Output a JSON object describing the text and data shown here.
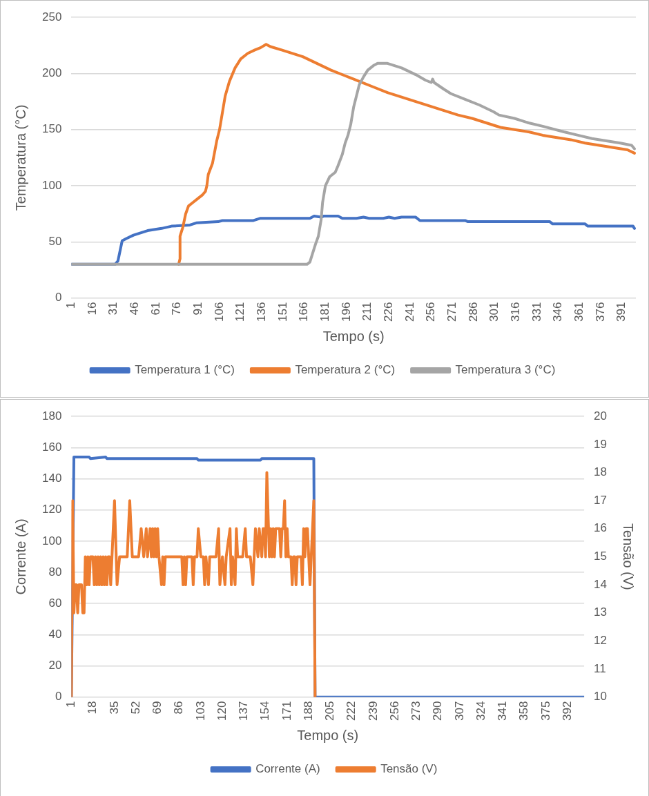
{
  "chart_data": [
    {
      "type": "line",
      "xlabel": "Tempo (s)",
      "ylabel": "Temperatura (°C)",
      "xlim": [
        1,
        401
      ],
      "xticks": [
        1,
        16,
        31,
        46,
        61,
        76,
        91,
        106,
        121,
        136,
        151,
        166,
        181,
        196,
        211,
        226,
        241,
        256,
        271,
        286,
        301,
        316,
        331,
        346,
        361,
        376,
        391
      ],
      "ylim": [
        0,
        250
      ],
      "yticks": [
        0,
        50,
        100,
        150,
        200,
        250
      ],
      "grid": "y",
      "legend": "bottom",
      "marker": "none",
      "series": [
        {
          "name": "Temperatura 1 (°C)",
          "color": "#4472c4",
          "x": [
            1,
            32,
            34,
            37,
            40,
            45,
            50,
            55,
            65,
            72,
            85,
            90,
            105,
            108,
            130,
            135,
            170,
            173,
            178,
            180,
            190,
            193,
            203,
            208,
            212,
            222,
            226,
            230,
            235,
            245,
            248,
            280,
            282,
            340,
            342,
            365,
            367,
            399,
            400
          ],
          "values": [
            30,
            30,
            33,
            51,
            53,
            56,
            58,
            60,
            62,
            64,
            65,
            67,
            68,
            69,
            69,
            71,
            71,
            73,
            72,
            73,
            73,
            71,
            71,
            72,
            71,
            71,
            72,
            71,
            72,
            72,
            69,
            69,
            68,
            68,
            66,
            66,
            64,
            64,
            62
          ]
        },
        {
          "name": "Temperatura 2 (°C)",
          "color": "#ed7d31",
          "x": [
            77,
            78,
            78,
            80,
            82,
            84,
            87,
            90,
            94,
            96,
            97,
            98,
            101,
            104,
            106,
            108,
            110,
            113,
            117,
            121,
            126,
            131,
            135,
            139,
            142,
            150,
            155,
            165,
            175,
            185,
            195,
            205,
            215,
            225,
            235,
            245,
            255,
            265,
            275,
            285,
            295,
            305,
            315,
            325,
            335,
            345,
            355,
            365,
            375,
            385,
            395,
            400
          ],
          "values": [
            30,
            35,
            55,
            63,
            75,
            82,
            85,
            88,
            92,
            95,
            100,
            110,
            120,
            140,
            150,
            165,
            180,
            193,
            205,
            213,
            218,
            221,
            223,
            226,
            224,
            221,
            219,
            215,
            209,
            203,
            198,
            193,
            188,
            183,
            179,
            175,
            171,
            167,
            163,
            160,
            156,
            152,
            150,
            148,
            145,
            143,
            141,
            138,
            136,
            134,
            132,
            129
          ]
        },
        {
          "name": "Temperatura 3 (°C)",
          "color": "#a5a5a5",
          "x": [
            1,
            168,
            170,
            172,
            174,
            176,
            178,
            179,
            181,
            184,
            188,
            190,
            193,
            195,
            197,
            199,
            201,
            203,
            205,
            208,
            211,
            215,
            218,
            225,
            235,
            245,
            252,
            256,
            257,
            258,
            265,
            270,
            280,
            290,
            300,
            304,
            315,
            325,
            335,
            350,
            360,
            370,
            380,
            390,
            398,
            400
          ],
          "values": [
            30,
            30,
            32,
            40,
            48,
            55,
            70,
            85,
            100,
            108,
            112,
            118,
            128,
            138,
            145,
            155,
            170,
            180,
            190,
            197,
            203,
            207,
            209,
            209,
            205,
            199,
            194,
            192,
            195,
            192,
            186,
            182,
            177,
            172,
            166,
            163,
            160,
            156,
            153,
            148,
            145,
            142,
            140,
            138,
            136,
            133
          ]
        }
      ]
    },
    {
      "type": "line",
      "xlabel": "Tempo (s)",
      "ylabel": "Corrente (A)",
      "y2label": "Tensão (V)",
      "xlim": [
        1,
        405
      ],
      "xticks": [
        1,
        18,
        35,
        52,
        69,
        86,
        103,
        120,
        137,
        154,
        171,
        188,
        205,
        222,
        239,
        256,
        273,
        290,
        307,
        324,
        341,
        358,
        375,
        392
      ],
      "ylim": [
        0,
        180
      ],
      "yticks": [
        0,
        20,
        40,
        60,
        80,
        100,
        120,
        140,
        160,
        180
      ],
      "y2lim": [
        10,
        20
      ],
      "y2ticks": [
        10,
        11,
        12,
        13,
        14,
        15,
        16,
        17,
        18,
        19,
        20
      ],
      "grid": "y",
      "legend": "bottom",
      "marker": "none",
      "series": [
        {
          "name": "Corrente (A)",
          "color": "#4472c4",
          "x": [
            1,
            3,
            15,
            16,
            28,
            29,
            100,
            101,
            150,
            151,
            190,
            192,
            193,
            405
          ],
          "values": [
            0,
            154,
            154,
            153,
            154,
            153,
            153,
            152,
            152,
            153,
            153,
            153,
            0,
            0
          ]
        },
        {
          "name": "Tensão (V)",
          "color": "#ed7d31",
          "axis": "y2",
          "x": [
            1,
            2,
            3,
            4,
            5,
            6,
            7,
            8,
            9,
            10,
            11,
            12,
            13,
            14,
            15,
            16,
            17,
            18,
            19,
            20,
            21,
            22,
            23,
            24,
            25,
            26,
            27,
            28,
            29,
            30,
            31,
            32,
            33,
            35,
            37,
            39,
            45,
            47,
            49,
            54,
            56,
            58,
            60,
            61,
            63,
            64,
            65,
            66,
            67,
            68,
            69,
            70,
            72,
            73,
            74,
            75,
            88,
            89,
            90,
            91,
            92,
            96,
            97,
            98,
            100,
            101,
            103,
            105,
            106,
            107,
            109,
            110,
            115,
            117,
            118,
            120,
            122,
            123,
            126,
            127,
            128,
            130,
            131,
            132,
            136,
            138,
            139,
            142,
            144,
            145,
            146,
            148,
            149,
            151,
            152,
            153,
            154,
            155,
            157,
            158,
            159,
            160,
            161,
            162,
            163,
            165,
            166,
            167,
            168,
            169,
            170,
            171,
            172,
            174,
            175,
            176,
            177,
            178,
            179,
            182,
            183,
            184,
            185,
            186,
            187,
            188,
            189,
            190,
            192,
            193
          ],
          "values": [
            10,
            17,
            13,
            14,
            14,
            13,
            14,
            14,
            14,
            13,
            13,
            15,
            14,
            15,
            14,
            15,
            15,
            15,
            14,
            15,
            14,
            15,
            14,
            15,
            14,
            15,
            14,
            15,
            14,
            15,
            15,
            14,
            15,
            17,
            14,
            15,
            15,
            17,
            15,
            15,
            16,
            15,
            16,
            15,
            16,
            15,
            16,
            15,
            16,
            15,
            16,
            15,
            14,
            15,
            14,
            15,
            15,
            14,
            15,
            14,
            15,
            15,
            14,
            15,
            15,
            16,
            15,
            15,
            14,
            15,
            14,
            15,
            15,
            16,
            14,
            15,
            14,
            15,
            16,
            14,
            15,
            14,
            16,
            15,
            15,
            16,
            15,
            15,
            14,
            15,
            16,
            15,
            16,
            15,
            16,
            16,
            15,
            18,
            15,
            16,
            15,
            16,
            15,
            16,
            16,
            16,
            15,
            16,
            16,
            17,
            15,
            16,
            15,
            15,
            14,
            15,
            15,
            14,
            15,
            15,
            14,
            16,
            15,
            16,
            16,
            15,
            14,
            15,
            17,
            10
          ]
        }
      ]
    }
  ]
}
